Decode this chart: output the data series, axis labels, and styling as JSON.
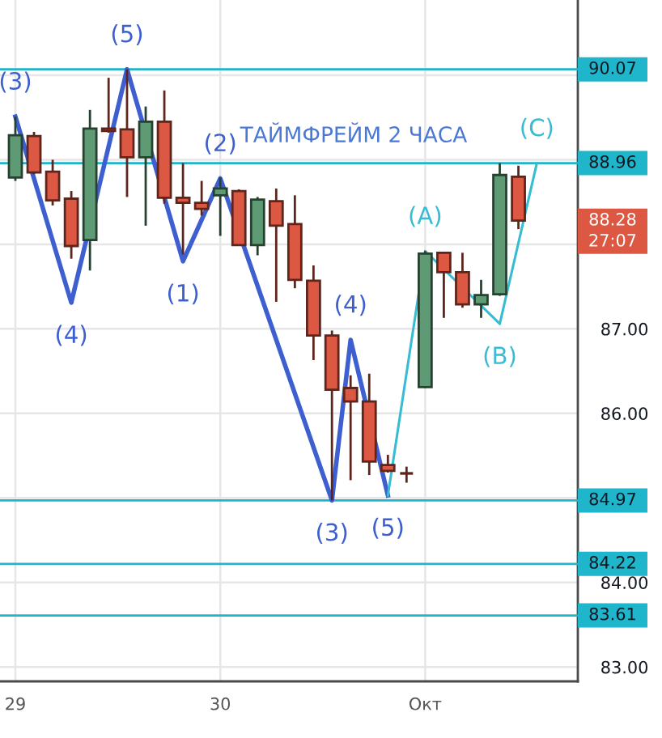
{
  "chart_data": {
    "type": "candlestick",
    "title": "ТАЙМФРЕЙМ 2 ЧАСА",
    "x": [
      29,
      29.091,
      29.182,
      29.273,
      29.364,
      29.455,
      29.545,
      29.636,
      29.727,
      29.818,
      29.909,
      30,
      30.091,
      30.182,
      30.273,
      30.364,
      30.455,
      30.545,
      30.636,
      30.727,
      30.818,
      30.909,
      31,
      31.091,
      31.182,
      31.273,
      31.364,
      31.455
    ],
    "ohlc": [
      [
        88.79,
        89.51,
        88.75,
        89.29
      ],
      [
        89.28,
        89.33,
        88.83,
        88.85
      ],
      [
        88.86,
        89.0,
        88.46,
        88.52
      ],
      [
        88.54,
        88.63,
        87.83,
        87.98
      ],
      [
        88.05,
        89.59,
        87.69,
        89.37
      ],
      [
        89.37,
        89.97,
        89.32,
        89.34
      ],
      [
        89.36,
        90.07,
        88.56,
        89.03
      ],
      [
        89.03,
        89.63,
        88.22,
        89.45
      ],
      [
        89.45,
        89.82,
        88.48,
        88.55
      ],
      [
        88.55,
        88.96,
        87.88,
        88.49
      ],
      [
        88.49,
        88.75,
        88.34,
        88.42
      ],
      [
        88.58,
        88.79,
        88.1,
        88.66
      ],
      [
        88.63,
        88.65,
        87.98,
        87.99
      ],
      [
        87.99,
        88.56,
        87.87,
        88.53
      ],
      [
        88.51,
        88.66,
        87.32,
        88.22
      ],
      [
        88.24,
        88.58,
        87.48,
        87.58
      ],
      [
        87.57,
        87.75,
        86.63,
        86.92
      ],
      [
        86.92,
        86.98,
        84.97,
        86.28
      ],
      [
        86.3,
        86.45,
        85.21,
        86.14
      ],
      [
        86.14,
        86.47,
        85.27,
        85.43
      ],
      [
        85.39,
        85.51,
        85.3,
        85.32
      ],
      [
        85.29,
        85.37,
        85.18,
        85.29
      ],
      [
        86.31,
        87.92,
        86.3,
        87.89
      ],
      [
        87.9,
        87.91,
        87.13,
        87.67
      ],
      [
        87.67,
        87.9,
        87.25,
        87.29
      ],
      [
        87.29,
        87.58,
        87.13,
        87.4
      ],
      [
        87.41,
        88.96,
        87.39,
        88.82
      ],
      [
        88.8,
        88.93,
        88.18,
        88.28
      ]
    ],
    "colors": [
      "#5e9b75",
      "#dd5843",
      "#dd5843",
      "#dd5843",
      "#5e9b75",
      "#dd5843",
      "#dd5843",
      "#5e9b75",
      "#dd5843",
      "#dd5843",
      "#dd5843",
      "#5e9b75",
      "#dd5843",
      "#5e9b75",
      "#dd5843",
      "#dd5843",
      "#dd5843",
      "#dd5843",
      "#dd5843",
      "#dd5843",
      "#dd5843",
      "#5d251c",
      "#5e9b75",
      "#dd5843",
      "#dd5843",
      "#5e9b75",
      "#5e9b75",
      "#dd5843"
    ],
    "series": [
      {
        "type": "line",
        "color": "#3d5fcf",
        "x": [
          29,
          29.273,
          29.545,
          29.818,
          30,
          30.545,
          30.636,
          30.818
        ],
        "values": [
          89.51,
          87.31,
          90.07,
          87.8,
          88.78,
          84.97,
          86.87,
          85.03
        ]
      },
      {
        "type": "line",
        "color": "#36bcd3",
        "x": [
          30.818,
          31,
          31.364,
          31.545
        ],
        "values": [
          85.03,
          87.92,
          87.06,
          88.96
        ]
      }
    ],
    "xlim": [
      28.925,
      31.745
    ],
    "xticks": [
      29,
      30,
      {
        "value": 31,
        "label": "Окт"
      }
    ],
    "ylim": [
      82.83,
      90.89
    ],
    "yticks": [
      {
        "value": 83,
        "label": "83.00"
      },
      {
        "value": 84,
        "label": "84.00"
      },
      {
        "value": 85,
        "label": null
      },
      {
        "value": 86,
        "label": "86.00"
      },
      {
        "value": 87,
        "label": "87.00"
      },
      {
        "value": 88,
        "label": null
      },
      {
        "value": 89,
        "label": null
      },
      {
        "value": 90,
        "label": null
      }
    ],
    "grid": true,
    "ref_lines": [
      {
        "axis": "y",
        "value": 90.07,
        "label": "90.07",
        "color": "#1fb5ca"
      },
      {
        "axis": "y",
        "value": 88.96,
        "label": "88.96",
        "color": "#1fb5ca"
      },
      {
        "axis": "y",
        "value": 84.97,
        "label": "84.97",
        "color": "#1fb5ca"
      },
      {
        "axis": "y",
        "value": 84.22,
        "label": "84.22",
        "color": "#1fb5ca"
      },
      {
        "axis": "y",
        "value": 83.61,
        "label": "83.61",
        "color": "#1fb5ca"
      }
    ],
    "annotations": [
      {
        "text": "(3)",
        "x": 29,
        "y": 89.51
      },
      {
        "text": "(4)",
        "x": 29.273,
        "y": 87.31
      },
      {
        "text": "(5)",
        "x": 29.545,
        "y": 90.07
      },
      {
        "text": "(1)",
        "x": 29.818,
        "y": 87.8
      },
      {
        "text": "(2)",
        "x": 30,
        "y": 88.78
      },
      {
        "text": "(3)",
        "x": 30.545,
        "y": 84.97
      },
      {
        "text": "(4)",
        "x": 30.636,
        "y": 86.87
      },
      {
        "text": "(5)",
        "x": 30.818,
        "y": 85.03
      },
      {
        "text": "(A)",
        "x": 31,
        "y": 87.92
      },
      {
        "text": "(B)",
        "x": 31.364,
        "y": 87.06
      },
      {
        "text": "(C)",
        "x": 31.545,
        "y": 88.96
      },
      "88.28",
      "27:07"
    ]
  }
}
